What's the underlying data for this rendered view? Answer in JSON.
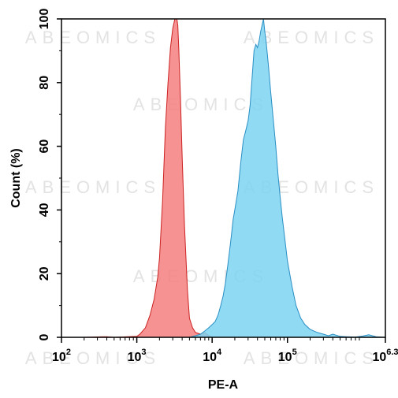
{
  "watermark": {
    "text": "ABEOMICS"
  },
  "chart_data": {
    "type": "area",
    "title": "",
    "xlabel": "PE-A",
    "ylabel": "Count  (%)",
    "x_scale": "log10",
    "xlim": [
      100,
      1995262
    ],
    "ylim": [
      0,
      100
    ],
    "x_ticks": [
      {
        "base": "10",
        "exp": "2"
      },
      {
        "base": "10",
        "exp": "3"
      },
      {
        "base": "10",
        "exp": "4"
      },
      {
        "base": "10",
        "exp": "5"
      },
      {
        "base": "10",
        "exp": "6.3"
      }
    ],
    "y_ticks": [
      "0",
      "20",
      "40",
      "60",
      "80",
      "100"
    ],
    "grid": false,
    "legend": "none",
    "series": [
      {
        "color": "#f47f7f",
        "stroke": "#cc2222",
        "x": [
          100,
          200,
          400,
          500,
          1000,
          1100,
          1300,
          1500,
          1700,
          1900,
          2000,
          2200,
          2400,
          2600,
          2800,
          3000,
          3200,
          3400,
          3500,
          3600,
          3800,
          4000,
          4300,
          4700,
          5000,
          5500,
          6000,
          7000,
          8000,
          9000,
          10000,
          20000
        ],
        "y": [
          0,
          0,
          0.2,
          0,
          0.3,
          1,
          3,
          7,
          12,
          19,
          25,
          43,
          66,
          80,
          91,
          97,
          100,
          100,
          98,
          91,
          75,
          57,
          35,
          15,
          6,
          3,
          1.5,
          1,
          1.5,
          0.5,
          0,
          0
        ]
      },
      {
        "color": "#7dd3f2",
        "stroke": "#2a8fc4",
        "x": [
          5000,
          6000,
          7000,
          8000,
          9000,
          10000,
          11000,
          12000,
          13000,
          14000,
          15000,
          16000,
          17000,
          18000,
          19000,
          20000,
          22000,
          24000,
          26000,
          28000,
          30000,
          32000,
          34000,
          36000,
          38000,
          40000,
          42000,
          44000,
          46000,
          48000,
          50000,
          52000,
          54000,
          56000,
          58000,
          60000,
          65000,
          70000,
          75000,
          80000,
          85000,
          90000,
          100000,
          115000,
          130000,
          150000,
          170000,
          200000,
          250000,
          300000,
          350000,
          400000,
          500000,
          600000,
          800000,
          1000000,
          1200000,
          1500000,
          1995262
        ],
        "y": [
          0,
          0.5,
          1,
          2,
          3,
          4,
          5,
          7,
          10,
          13,
          17,
          22,
          27,
          32,
          37,
          40,
          46,
          55,
          62,
          65,
          68,
          73,
          82,
          90,
          92,
          91,
          93,
          96,
          98,
          100,
          96,
          93,
          89,
          85,
          81,
          77,
          68,
          60,
          51,
          44,
          38,
          33,
          24,
          16,
          10,
          6,
          4,
          2.5,
          1.5,
          1,
          0.5,
          1,
          0.3,
          0.2,
          0.1,
          0.4,
          0.8,
          0.2,
          0
        ]
      }
    ]
  }
}
